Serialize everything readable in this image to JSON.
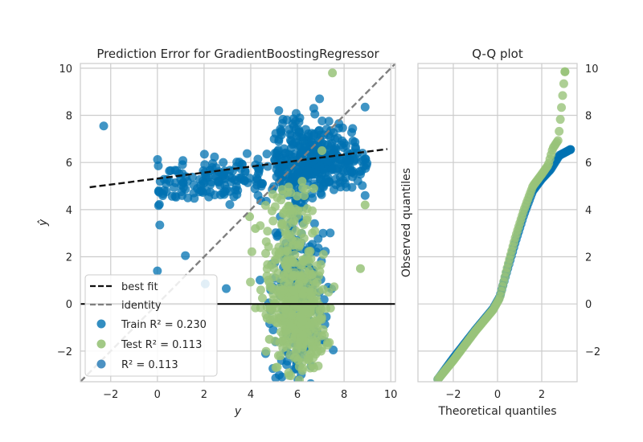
{
  "chart_data": [
    {
      "type": "scatter",
      "title": "Prediction Error for GradientBoostingRegressor",
      "xlabel": "y",
      "ylabel": "ŷ",
      "xlim": [
        -3.3,
        10.2
      ],
      "ylim": [
        -3.3,
        10.2
      ],
      "xticks": [
        -2,
        0,
        2,
        4,
        6,
        8,
        10
      ],
      "yticks": [
        -2,
        0,
        2,
        4,
        6,
        8,
        10
      ],
      "grid": true,
      "legend_position": "lower-left",
      "colors": {
        "train": "#0072b2",
        "test": "#98c379",
        "train_alt": "#1f77b4",
        "best_fit": "#111111",
        "identity": "#7f7f7f",
        "zero": "#000000"
      },
      "series": [
        {
          "name": "Train R² = 0.230",
          "clusters": [
            {
              "x_range": [
                0,
                9
              ],
              "y_center": 5.5,
              "y_spread": 0.9,
              "n": 280,
              "role": "upper band"
            },
            {
              "x_range": [
                5,
                8.2
              ],
              "y_center": 6.4,
              "y_spread": 1.0,
              "n": 240,
              "role": "dense upper core"
            },
            {
              "x_range": [
                4.5,
                7.5
              ],
              "y_center": 0.5,
              "y_spread": 2.2,
              "n": 260,
              "role": "vertical column"
            }
          ],
          "points": [
            [
              -2.3,
              7.55
            ],
            [
              0.0,
              1.4
            ],
            [
              1.2,
              2.05
            ],
            [
              2.05,
              0.85
            ],
            [
              2.95,
              0.65
            ],
            [
              5.2,
              8.2
            ],
            [
              6.95,
              8.7
            ],
            [
              7.35,
              7.75
            ],
            [
              8.9,
              8.35
            ],
            [
              6.7,
              8.3
            ],
            [
              8.7,
              5.5
            ],
            [
              8.9,
              4.6
            ],
            [
              6.3,
              6.7
            ],
            [
              7.1,
              3.0
            ]
          ]
        },
        {
          "name": "Test R² = 0.113",
          "clusters": [
            {
              "x_range": [
                4.7,
                7.6
              ],
              "y_center": -0.6,
              "y_spread": 1.1,
              "n": 320,
              "role": "lower core"
            },
            {
              "x_range": [
                4.8,
                7.2
              ],
              "y_center": 2.6,
              "y_spread": 1.6,
              "n": 140,
              "role": "vertical column"
            }
          ],
          "points": [
            [
              7.5,
              9.8
            ],
            [
              8.9,
              4.2
            ],
            [
              3.95,
              3.7
            ],
            [
              4.2,
              3.2
            ],
            [
              6.2,
              5.2
            ],
            [
              6.7,
              4.9
            ],
            [
              7.05,
              6.5
            ],
            [
              8.7,
              1.5
            ],
            [
              4.8,
              -1.5
            ],
            [
              4.7,
              -0.6
            ]
          ]
        },
        {
          "name": "R² = 0.113",
          "points": []
        }
      ],
      "lines": [
        {
          "name": "best fit",
          "style": "dashed",
          "from": [
            -2.9,
            4.95
          ],
          "to": [
            9.85,
            6.57
          ]
        },
        {
          "name": "identity",
          "style": "dashed",
          "from": [
            -3.3,
            -3.3
          ],
          "to": [
            10.2,
            10.2
          ]
        },
        {
          "name": "zero",
          "style": "solid",
          "from": [
            -3.3,
            0
          ],
          "to": [
            10.2,
            0
          ]
        }
      ],
      "legend": [
        {
          "label": "best fit",
          "kind": "dash-black"
        },
        {
          "label": "identity",
          "kind": "dash-grey"
        },
        {
          "label": "Train R² = 0.230",
          "kind": "dot-blue"
        },
        {
          "label": "Test R² = 0.113",
          "kind": "dot-green"
        },
        {
          "label": "R² = 0.113",
          "kind": "dot-blue"
        }
      ]
    },
    {
      "type": "scatter",
      "title": "Q-Q plot",
      "xlabel": "Theoretical quantiles",
      "ylabel": "Observed quantiles",
      "xlim": [
        -3.6,
        3.6
      ],
      "ylim": [
        -3.3,
        10.2
      ],
      "xticks": [
        -2,
        0,
        2
      ],
      "yticks": [
        -2,
        0,
        2,
        4,
        6,
        8,
        10
      ],
      "grid": true,
      "series": [
        {
          "name": "train",
          "quantile_curve": [
            [
              -2.7,
              -3.2
            ],
            [
              -2.0,
              -2.3
            ],
            [
              -1.0,
              -1.1
            ],
            [
              -0.2,
              -0.2
            ],
            [
              0.1,
              0.3
            ],
            [
              0.4,
              1.3
            ],
            [
              0.8,
              2.6
            ],
            [
              1.2,
              3.8
            ],
            [
              1.6,
              4.8
            ],
            [
              2.0,
              5.3
            ],
            [
              2.4,
              5.7
            ],
            [
              2.8,
              6.3
            ],
            [
              3.3,
              6.55
            ]
          ]
        },
        {
          "name": "test",
          "quantile_curve": [
            [
              -2.7,
              -3.2
            ],
            [
              -2.0,
              -2.4
            ],
            [
              -1.0,
              -1.15
            ],
            [
              -0.2,
              -0.25
            ],
            [
              0.1,
              0.25
            ],
            [
              0.4,
              1.4
            ],
            [
              0.8,
              2.8
            ],
            [
              1.2,
              4.0
            ],
            [
              1.6,
              5.0
            ],
            [
              2.0,
              5.5
            ],
            [
              2.3,
              5.9
            ],
            [
              2.5,
              6.6
            ],
            [
              2.75,
              6.95
            ],
            [
              3.05,
              9.85
            ]
          ]
        }
      ]
    }
  ]
}
